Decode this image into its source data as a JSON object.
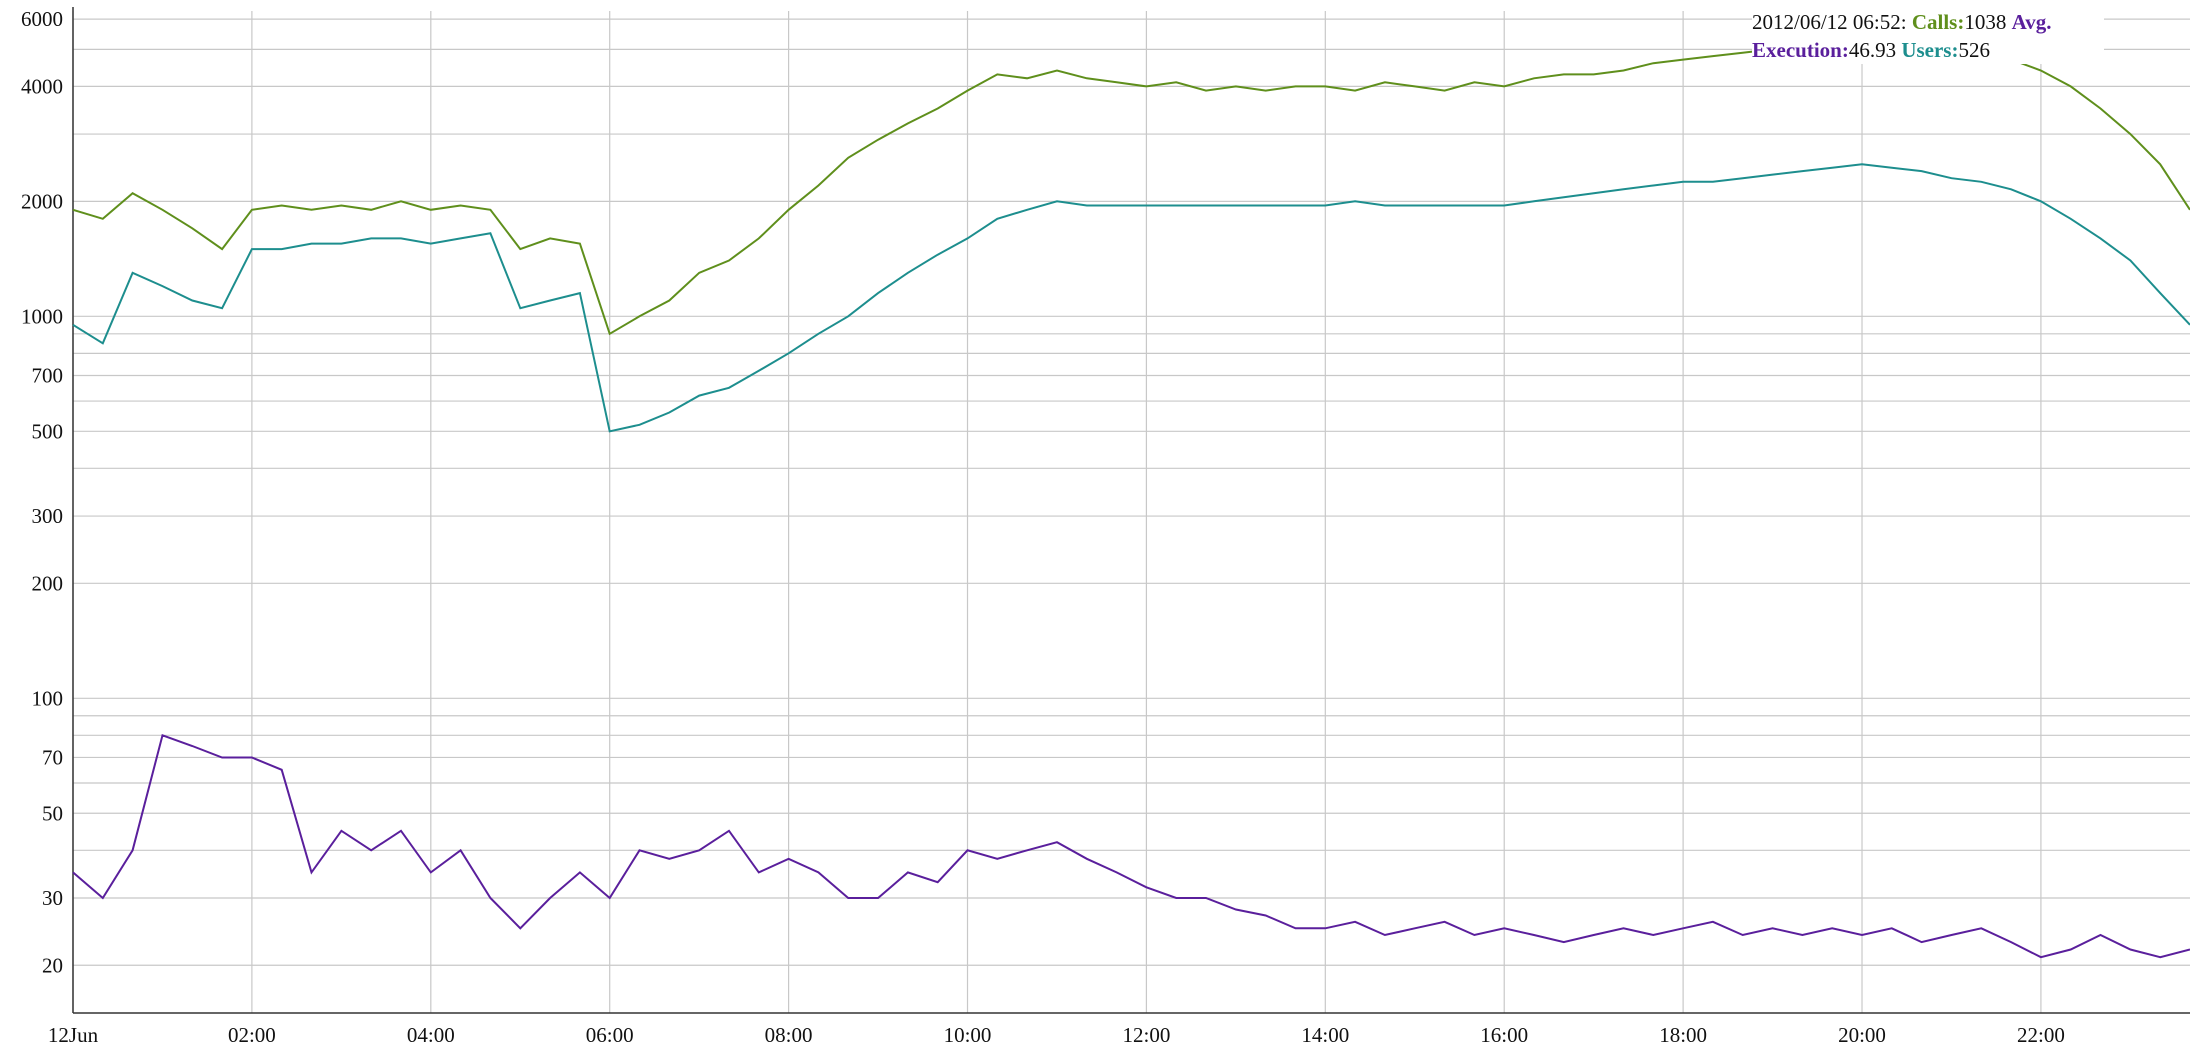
{
  "chart_data": {
    "type": "line",
    "log_scale": true,
    "grid": true,
    "x": [
      0,
      20,
      40,
      60,
      80,
      100,
      120,
      140,
      160,
      180,
      200,
      220,
      240,
      260,
      280,
      300,
      320,
      340,
      360,
      380,
      400,
      420,
      440,
      460,
      480,
      500,
      520,
      540,
      560,
      580,
      600,
      620,
      640,
      660,
      680,
      700,
      720,
      740,
      760,
      780,
      800,
      820,
      840,
      860,
      880,
      900,
      920,
      940,
      960,
      980,
      1000,
      1020,
      1040,
      1060,
      1080,
      1100,
      1120,
      1140,
      1160,
      1180,
      1200,
      1220,
      1240,
      1260,
      1280,
      1300,
      1320,
      1340,
      1360,
      1380,
      1400,
      1420
    ],
    "xlim": [
      0,
      1420
    ],
    "xticks": [
      {
        "value": 0,
        "label": "12Jun"
      },
      {
        "value": 120,
        "label": "02:00"
      },
      {
        "value": 240,
        "label": "04:00"
      },
      {
        "value": 360,
        "label": "06:00"
      },
      {
        "value": 480,
        "label": "08:00"
      },
      {
        "value": 600,
        "label": "10:00"
      },
      {
        "value": 720,
        "label": "12:00"
      },
      {
        "value": 840,
        "label": "14:00"
      },
      {
        "value": 960,
        "label": "16:00"
      },
      {
        "value": 1080,
        "label": "18:00"
      },
      {
        "value": 1200,
        "label": "20:00"
      },
      {
        "value": 1320,
        "label": "22:00"
      }
    ],
    "ylim": [
      15,
      6300
    ],
    "yticks": [
      20,
      30,
      50,
      70,
      100,
      200,
      300,
      500,
      700,
      1000,
      2000,
      4000,
      6000
    ],
    "y_minor_ticks": [
      40,
      60,
      80,
      90,
      400,
      600,
      800,
      900,
      3000,
      5000
    ],
    "series": [
      {
        "name": "Calls",
        "color": "#5f8f1c",
        "values": [
          1900,
          1800,
          2100,
          1900,
          1700,
          1500,
          1900,
          1950,
          1900,
          1950,
          1900,
          2000,
          1900,
          1950,
          1900,
          1500,
          1600,
          1550,
          900,
          1000,
          1100,
          1300,
          1400,
          1600,
          1900,
          2200,
          2600,
          2900,
          3200,
          3500,
          3900,
          4300,
          4200,
          4400,
          4200,
          4100,
          4000,
          4100,
          3900,
          4000,
          3900,
          4000,
          4000,
          3900,
          4100,
          4000,
          3900,
          4100,
          4000,
          4200,
          4300,
          4300,
          4400,
          4600,
          4700,
          4800,
          4900,
          5000,
          5000,
          5100,
          5100,
          5000,
          5000,
          4900,
          4800,
          4700,
          4400,
          4000,
          3500,
          3000,
          2500,
          1900
        ]
      },
      {
        "name": "Users",
        "color": "#1d8e8e",
        "values": [
          950,
          850,
          1300,
          1200,
          1100,
          1050,
          1500,
          1500,
          1550,
          1550,
          1600,
          1600,
          1550,
          1600,
          1650,
          1050,
          1100,
          1150,
          500,
          520,
          560,
          620,
          650,
          720,
          800,
          900,
          1000,
          1150,
          1300,
          1450,
          1600,
          1800,
          1900,
          2000,
          1950,
          1950,
          1950,
          1950,
          1950,
          1950,
          1950,
          1950,
          1950,
          2000,
          1950,
          1950,
          1950,
          1950,
          1950,
          2000,
          2050,
          2100,
          2150,
          2200,
          2250,
          2250,
          2300,
          2350,
          2400,
          2450,
          2500,
          2450,
          2400,
          2300,
          2250,
          2150,
          2000,
          1800,
          1600,
          1400,
          1150,
          950
        ]
      },
      {
        "name": "Avg. Execution",
        "color": "#5a1f9c",
        "values": [
          35,
          30,
          40,
          80,
          75,
          70,
          70,
          65,
          35,
          45,
          40,
          45,
          35,
          40,
          30,
          25,
          30,
          35,
          30,
          40,
          38,
          40,
          45,
          35,
          38,
          35,
          30,
          30,
          35,
          33,
          40,
          38,
          40,
          42,
          38,
          35,
          32,
          30,
          30,
          28,
          27,
          25,
          25,
          26,
          24,
          25,
          26,
          24,
          25,
          24,
          23,
          24,
          25,
          24,
          25,
          26,
          24,
          25,
          24,
          25,
          24,
          25,
          23,
          24,
          25,
          23,
          21,
          22,
          24,
          22,
          21,
          22
        ]
      }
    ],
    "tooltip": {
      "time": "2012/06/12 06:52:",
      "items": [
        {
          "label": "Calls:",
          "value": 1038,
          "color": "#5f8f1c"
        },
        {
          "label": "Avg. Execution:",
          "value": 46.93,
          "color": "#5a1f9c"
        },
        {
          "label": "Users:",
          "value": 526,
          "color": "#1d8e8e"
        }
      ]
    }
  }
}
